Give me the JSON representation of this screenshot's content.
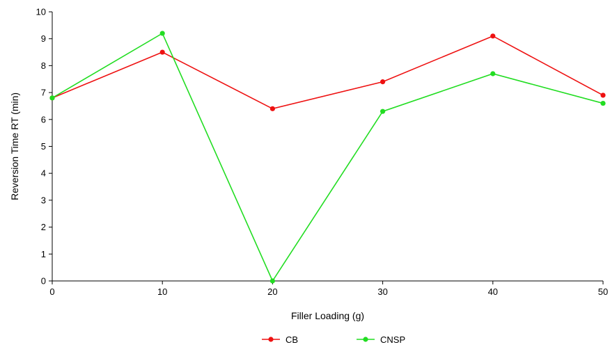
{
  "chart_data": {
    "type": "line",
    "title": "",
    "xlabel": "Filler Loading (g)",
    "ylabel": "Reversion Time RT (min)",
    "x": [
      0,
      10,
      20,
      30,
      40,
      50
    ],
    "xlim": [
      0,
      50
    ],
    "ylim": [
      0,
      10
    ],
    "xticks": [
      "0",
      "10",
      "20",
      "30",
      "40",
      "50"
    ],
    "yticks": [
      "0",
      "1",
      "2",
      "3",
      "4",
      "5",
      "6",
      "7",
      "8",
      "9",
      "10"
    ],
    "grid": false,
    "legend_position": "bottom-center",
    "series": [
      {
        "name": "CB",
        "color": "#ee1111",
        "values": [
          6.8,
          8.5,
          6.4,
          7.4,
          9.1,
          6.9
        ]
      },
      {
        "name": "CNSP",
        "color": "#22dd22",
        "values": [
          6.8,
          9.2,
          0.0,
          6.3,
          7.7,
          6.6
        ]
      }
    ]
  }
}
